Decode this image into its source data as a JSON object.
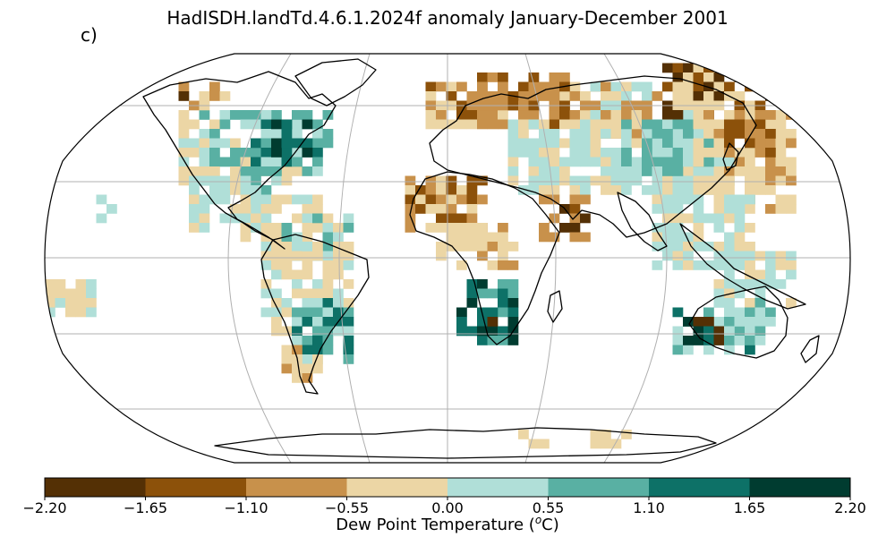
{
  "title": "HadISDH.landTd.4.6.1.2024f anomaly January-December 2001",
  "panel_label": "c)",
  "colorbar": {
    "label": "Dew Point Temperature (",
    "unit_sup": "o",
    "unit_tail": "C)",
    "ticks": [
      "−2.20",
      "−1.65",
      "−1.10",
      "−0.55",
      "0.00",
      "0.55",
      "1.10",
      "1.65",
      "2.20"
    ],
    "colors": [
      "#543005",
      "#8c510a",
      "#c8914b",
      "#ecd6a5",
      "#b0dfd8",
      "#59b0a3",
      "#0d7167",
      "#003c30"
    ]
  },
  "map": {
    "projection": "Robinson",
    "graticule_color": "#b0b0b0",
    "coastline_color": "#000000"
  }
}
